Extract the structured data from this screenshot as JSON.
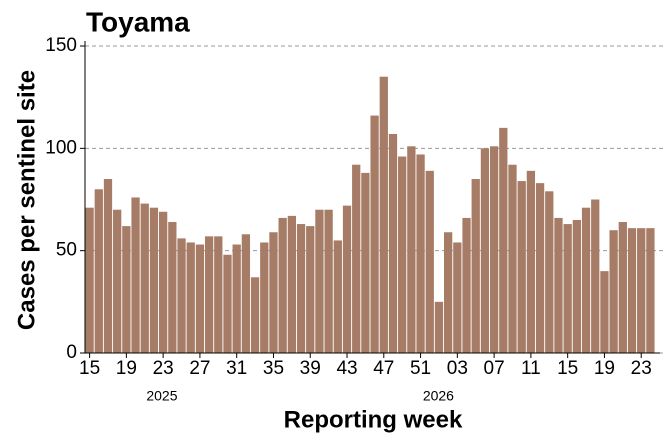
{
  "chart_data": {
    "type": "bar",
    "title": "Toyama",
    "x_label": "Reporting week",
    "y_label": "Cases per sentinel site",
    "categories": [
      "15",
      null,
      null,
      null,
      "19",
      null,
      null,
      null,
      "23",
      null,
      null,
      null,
      "27",
      null,
      null,
      null,
      "31",
      null,
      null,
      null,
      "35",
      null,
      null,
      null,
      "39",
      null,
      null,
      null,
      "43",
      null,
      null,
      null,
      "47",
      null,
      null,
      null,
      "51",
      null,
      null,
      null,
      "03",
      null,
      null,
      null,
      "07",
      null,
      null,
      null,
      "11",
      null,
      null,
      null,
      "15",
      null,
      null,
      null,
      "19",
      null,
      null,
      null,
      "23",
      null
    ],
    "values": [
      71,
      80,
      85,
      70,
      62,
      76,
      73,
      71,
      69,
      64,
      56,
      54,
      53,
      57,
      57,
      48,
      53,
      58,
      37,
      54,
      59,
      66,
      67,
      63,
      62,
      70,
      70,
      55,
      72,
      92,
      88,
      116,
      135,
      107,
      96,
      101,
      97,
      89,
      25,
      59,
      54,
      66,
      85,
      100,
      101,
      110,
      92,
      84,
      89,
      83,
      79,
      66,
      63,
      65,
      71,
      75,
      40,
      60,
      64,
      61,
      61,
      61
    ],
    "year_labels": [
      "2025",
      "2026"
    ],
    "color": "#a67c66",
    "ylim": [
      0,
      150
    ],
    "yticks": [
      0,
      50,
      100,
      150
    ],
    "grid": true
  }
}
